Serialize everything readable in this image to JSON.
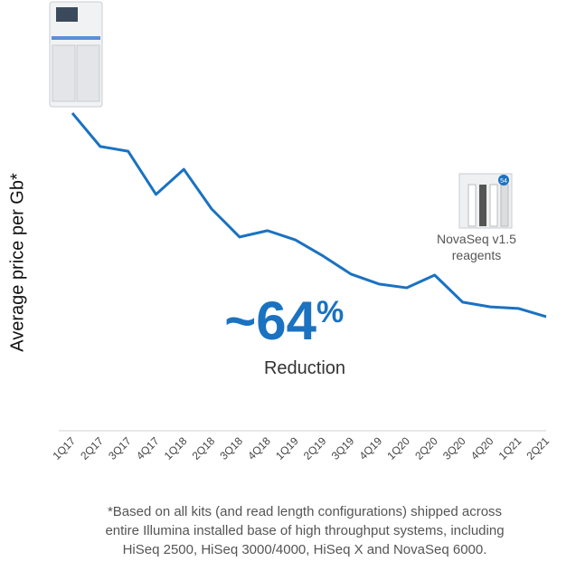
{
  "chart_data": {
    "type": "line",
    "y_label": "Average price per Gb*",
    "categories": [
      "1Q17",
      "2Q17",
      "3Q17",
      "4Q17",
      "1Q18",
      "2Q18",
      "3Q18",
      "4Q18",
      "1Q19",
      "2Q19",
      "3Q19",
      "4Q19",
      "1Q20",
      "2Q20",
      "3Q20",
      "4Q20",
      "1Q21",
      "2Q21"
    ],
    "values": [
      100,
      89.5,
      88,
      74.4,
      82.3,
      69.8,
      61,
      63,
      60.1,
      55,
      49.3,
      46.2,
      45,
      49,
      40.5,
      39,
      38.5,
      35.9
    ],
    "color": "#1a72c1",
    "ylim": [
      0,
      100
    ],
    "annotations": {
      "big_number": "~64",
      "big_unit": "%",
      "big_caption": "Reduction",
      "reagent_line1": "NovaSeq v1.5",
      "reagent_line2": "reagents",
      "badge": "54"
    },
    "footnote": [
      "*Based on all kits (and read length configurations) shipped across",
      "entire Illumina installed base of high throughput systems, including",
      "HiSeq 2500, HiSeq 3000/4000, HiSeq X and NovaSeq 6000."
    ]
  }
}
